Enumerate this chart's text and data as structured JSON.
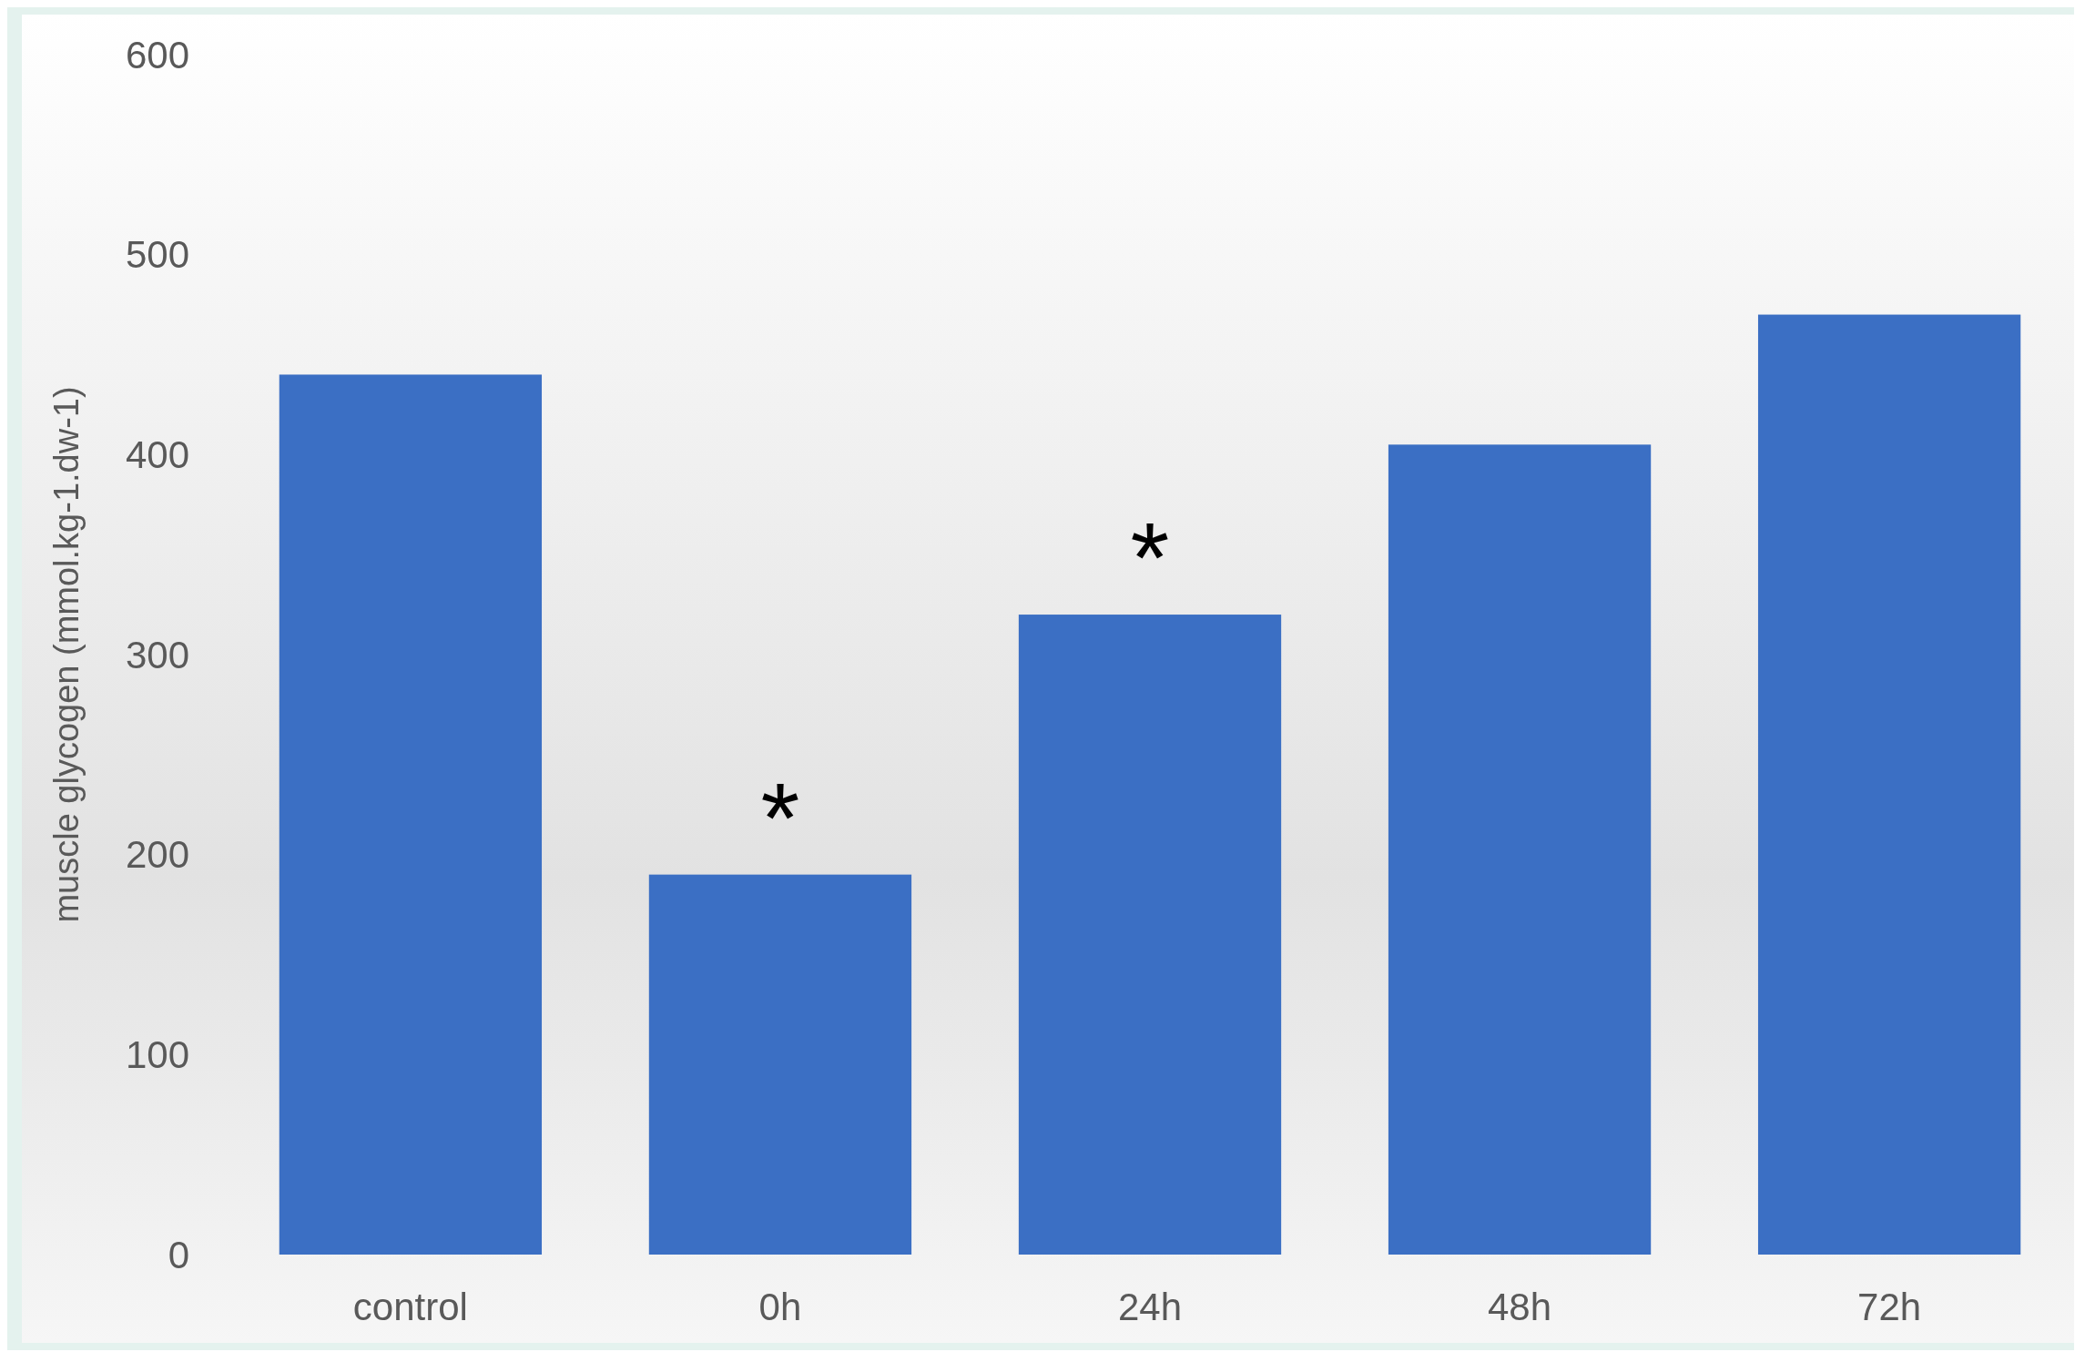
{
  "chart_data": {
    "type": "bar",
    "ylabel": "muscle glycogen (mmol.kg-1.dw-1)",
    "categories": [
      "control",
      "0h",
      "24h",
      "48h",
      "72h"
    ],
    "values": [
      440,
      190,
      320,
      405,
      470
    ],
    "color": "#3b6fc4",
    "ylim": [
      0,
      600
    ],
    "yticks": [
      0,
      100,
      200,
      300,
      400,
      500,
      600
    ],
    "grid": false,
    "annotations": [
      {
        "text": "*",
        "x": "0h",
        "y": 190
      },
      {
        "text": "*",
        "x": "24h",
        "y": 320
      }
    ]
  }
}
